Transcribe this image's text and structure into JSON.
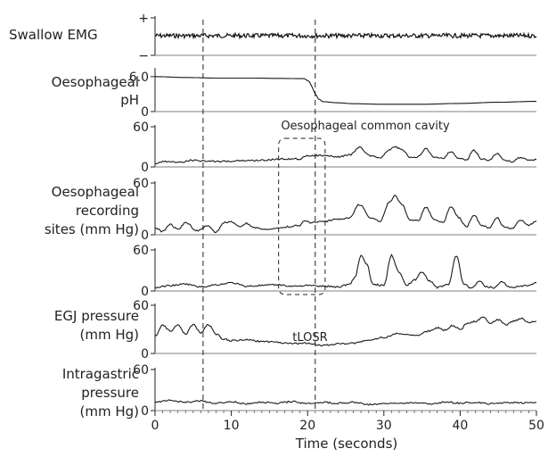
{
  "chart_data": {
    "type": "line",
    "x_label": "Time (seconds)",
    "x_ticks": [
      "0",
      "10",
      "20",
      "30",
      "40",
      "50"
    ],
    "xlim": [
      0,
      50
    ],
    "annotations": {
      "common_cavity": "Oesophageal common cavity",
      "tlosr": "tLOSR",
      "dashed_lines_s": [
        6.3,
        21
      ]
    },
    "panels": [
      {
        "key": "emg",
        "label_lines": [
          "Swallow EMG"
        ],
        "ticks": [
          {
            "label": "+",
            "v": 1
          },
          {
            "label": "−",
            "v": -1
          }
        ],
        "ylim": [
          -1,
          1
        ],
        "x": [
          0,
          50
        ],
        "y": [
          0,
          0
        ],
        "noise": true
      },
      {
        "key": "ph",
        "label_lines": [
          "Oesophageal",
          "pH"
        ],
        "ticks": [
          {
            "label": "6.0",
            "v": 6
          },
          {
            "label": "0",
            "v": 0
          }
        ],
        "ylim": [
          0,
          7.2
        ],
        "x": [
          0,
          4,
          8,
          12,
          16,
          19.5,
          20.2,
          20.6,
          21.0,
          21.5,
          22,
          24,
          26,
          30,
          35,
          40,
          45,
          50
        ],
        "y": [
          6.0,
          5.85,
          5.75,
          5.75,
          5.7,
          5.65,
          5.2,
          4.2,
          3.0,
          2.1,
          1.7,
          1.5,
          1.35,
          1.25,
          1.25,
          1.4,
          1.6,
          1.75
        ]
      },
      {
        "key": "oes1",
        "label_lines": [],
        "ticks": [
          {
            "label": "60",
            "v": 60
          },
          {
            "label": "0",
            "v": 0
          }
        ],
        "ylim": [
          0,
          60
        ],
        "x": [
          0,
          1,
          3,
          5,
          8,
          11,
          14,
          17,
          19,
          19.6,
          20.5,
          22,
          24,
          25.5,
          26.8,
          28.2,
          29.5,
          30.7,
          31.5,
          32.3,
          33.5,
          34.5,
          35.5,
          36.6,
          37.7,
          38.8,
          39.8,
          40.8,
          41.8,
          42.8,
          43.8,
          44.8,
          45.8,
          46.8,
          47.8,
          49,
          50
        ],
        "y": [
          4,
          8,
          7,
          10,
          8,
          9,
          10,
          12,
          12,
          16,
          17,
          17,
          15,
          18,
          29,
          17,
          14,
          25,
          30,
          26,
          14,
          15,
          27,
          15,
          13,
          23,
          13,
          10,
          25,
          12,
          10,
          20,
          10,
          8,
          14,
          10,
          11
        ]
      },
      {
        "key": "oes2",
        "label_lines": [
          "Oesophageal",
          "recording",
          "sites (mm Hg)"
        ],
        "ticks": [
          {
            "label": "60",
            "v": 60
          },
          {
            "label": "0",
            "v": 0
          }
        ],
        "ylim": [
          0,
          60
        ],
        "x": [
          0,
          1,
          2,
          3,
          4,
          5.5,
          7,
          8,
          9,
          10,
          11,
          12,
          13,
          15,
          17,
          19,
          19.6,
          20.5,
          22,
          24,
          25.5,
          26.8,
          28.2,
          29.5,
          30.7,
          31.5,
          32.3,
          33.5,
          34.5,
          35.5,
          36.6,
          37.7,
          38.8,
          39.8,
          40.8,
          41.8,
          42.8,
          43.8,
          44.8,
          45.8,
          46.8,
          47.8,
          49,
          50
        ],
        "y": [
          8,
          4,
          12,
          6,
          14,
          5,
          10,
          3,
          14,
          15,
          9,
          13,
          8,
          6,
          9,
          11,
          16,
          14,
          15,
          18,
          20,
          35,
          20,
          15,
          38,
          45,
          36,
          17,
          16,
          32,
          18,
          14,
          33,
          20,
          9,
          23,
          11,
          8,
          20,
          9,
          7,
          17,
          11,
          16
        ]
      },
      {
        "key": "oes3",
        "label_lines": [],
        "ticks": [
          {
            "label": "60",
            "v": 60
          },
          {
            "label": "0",
            "v": 0
          }
        ],
        "ylim": [
          0,
          60
        ],
        "x": [
          0,
          2,
          4,
          6,
          8,
          10,
          12,
          14,
          16,
          18,
          20,
          22,
          24,
          25.5,
          26.2,
          27.0,
          27.8,
          28.5,
          30,
          31.0,
          32.0,
          33.0,
          34,
          35.0,
          36.0,
          37,
          38.5,
          39.5,
          40.5,
          41.5,
          42.5,
          43.5,
          44.5,
          45.5,
          46.5,
          47.5,
          49,
          50
        ],
        "y": [
          5,
          8,
          10,
          6,
          9,
          12,
          7,
          8,
          9,
          7,
          8,
          7,
          6,
          10,
          20,
          52,
          38,
          10,
          8,
          52,
          28,
          8,
          16,
          28,
          15,
          5,
          10,
          52,
          10,
          4,
          14,
          6,
          5,
          14,
          5,
          6,
          8,
          12
        ]
      },
      {
        "key": "egj",
        "label_lines": [
          "EGJ pressure",
          "(mm Hg)"
        ],
        "ticks": [
          {
            "label": "60",
            "v": 60
          },
          {
            "label": "0",
            "v": 0
          }
        ],
        "ylim": [
          0,
          60
        ],
        "x": [
          0,
          1,
          2,
          3,
          4,
          5,
          6,
          7,
          8,
          9,
          10,
          12,
          14,
          16,
          18,
          20,
          22,
          24,
          26,
          28,
          30,
          32,
          34,
          36,
          37,
          38,
          39,
          40,
          41,
          42,
          43,
          44,
          45,
          46,
          47,
          48,
          49,
          50
        ],
        "y": [
          22,
          35,
          28,
          35,
          24,
          36,
          26,
          36,
          24,
          18,
          16,
          17,
          15,
          14,
          12,
          13,
          10,
          12,
          13,
          16,
          20,
          25,
          22,
          28,
          32,
          29,
          35,
          30,
          38,
          40,
          45,
          38,
          42,
          36,
          40,
          44,
          38,
          40
        ]
      },
      {
        "key": "ig",
        "label_lines": [
          "Intragastric",
          "pressure",
          "(mm Hg)"
        ],
        "ticks": [
          {
            "label": "60",
            "v": 60
          },
          {
            "label": "0",
            "v": 0
          }
        ],
        "ylim": [
          0,
          60
        ],
        "x": [
          0,
          2,
          4,
          6,
          8,
          10,
          12,
          14,
          16,
          18,
          20,
          22,
          24,
          26,
          28,
          30,
          32,
          34,
          36,
          38,
          40,
          42,
          44,
          46,
          48,
          50
        ],
        "y": [
          12,
          15,
          12,
          14,
          11,
          13,
          10,
          12,
          11,
          13,
          10,
          12,
          11,
          12,
          9,
          10,
          11,
          12,
          10,
          12,
          11,
          12,
          10,
          12,
          11,
          12
        ]
      }
    ]
  }
}
